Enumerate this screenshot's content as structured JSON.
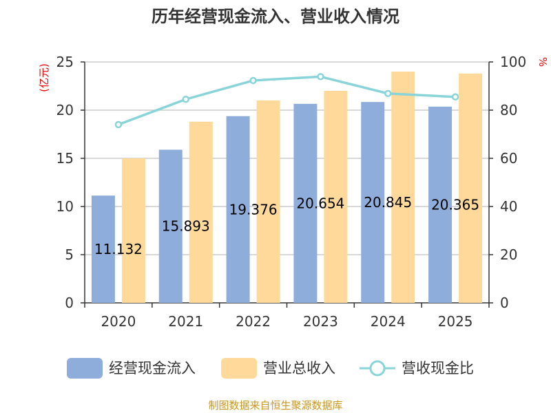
{
  "chart_data": {
    "type": "bar",
    "title": "历年经营现金流入、营业收入情况",
    "categories": [
      "2020",
      "2021",
      "2022",
      "2023",
      "2024",
      "2025"
    ],
    "y_left": {
      "unit": "(亿元)",
      "ylim": [
        0,
        25
      ],
      "ticks": [
        0,
        5,
        10,
        15,
        20,
        25
      ]
    },
    "y_right": {
      "unit": "%",
      "ylim": [
        0,
        100
      ],
      "ticks": [
        0,
        20,
        40,
        60,
        80,
        100
      ]
    },
    "series": [
      {
        "name": "经营现金流入",
        "type": "bar",
        "axis": "left",
        "color": "#8eadda",
        "values": [
          11.132,
          15.893,
          19.376,
          20.654,
          20.845,
          20.365
        ],
        "labels": [
          "11.132",
          "15.893",
          "19.376",
          "20.654",
          "20.845",
          "20.365"
        ]
      },
      {
        "name": "营业总收入",
        "type": "bar",
        "axis": "left",
        "color": "#ffd99a",
        "values": [
          15.0,
          18.8,
          21.0,
          22.0,
          24.0,
          23.8
        ]
      },
      {
        "name": "营收现金比",
        "type": "line",
        "axis": "right",
        "color": "#88d4d8",
        "values": [
          74.0,
          84.5,
          92.3,
          93.9,
          86.9,
          85.5
        ]
      }
    ],
    "grid": true,
    "legend_position": "bottom"
  },
  "footer": {
    "source": "制图数据来自恒生聚源数据库"
  }
}
